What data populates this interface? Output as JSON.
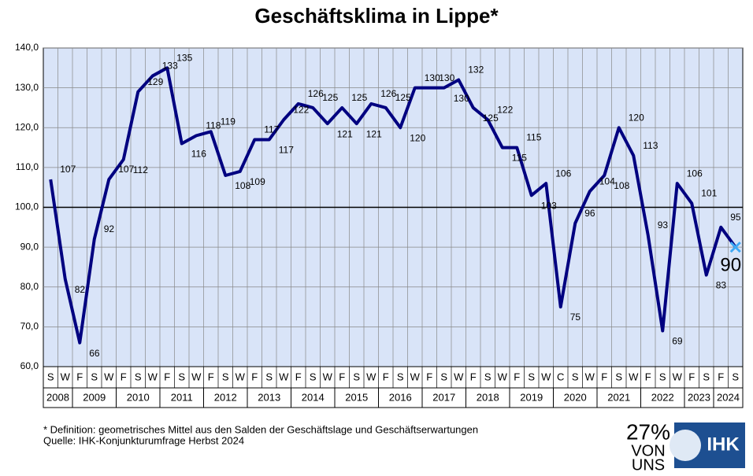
{
  "chart_data": {
    "type": "line",
    "title": "Geschäftsklima in Lippe*",
    "categories": [
      "S",
      "W",
      "F",
      "S",
      "W",
      "F",
      "S",
      "W",
      "F",
      "S",
      "W",
      "F",
      "S",
      "W",
      "F",
      "S",
      "W",
      "F",
      "S",
      "W",
      "F",
      "S",
      "W",
      "F",
      "S",
      "W",
      "F",
      "S",
      "W",
      "F",
      "S",
      "W",
      "F",
      "S",
      "W",
      "C",
      "S",
      "W",
      "F",
      "S",
      "W",
      "F",
      "S",
      "W",
      "F",
      "S",
      "F",
      "S"
    ],
    "years": [
      "2008",
      "2008",
      "2009",
      "2009",
      "2009",
      "2010",
      "2010",
      "2010",
      "2011",
      "2011",
      "2011",
      "2012",
      "2012",
      "2012",
      "2013",
      "2013",
      "2013",
      "2014",
      "2014",
      "2014",
      "2015",
      "2015",
      "2015",
      "2016",
      "2016",
      "2016",
      "2017",
      "2017",
      "2017",
      "2018",
      "2018",
      "2018",
      "2019",
      "2019",
      "2019",
      "2020",
      "2020",
      "2020",
      "2021",
      "2021",
      "2021",
      "2022",
      "2022",
      "2022",
      "2023",
      "2023",
      "2024",
      "2024"
    ],
    "series": [
      {
        "name": "Geschäftsklima",
        "color": "#000080",
        "values": [
          107,
          82,
          66,
          92,
          107,
          112,
          129,
          133,
          135,
          116,
          118,
          119,
          108,
          109,
          117,
          117,
          122,
          126,
          125,
          121,
          125,
          121,
          126,
          125,
          120,
          130,
          130,
          130,
          132,
          125,
          122,
          115,
          115,
          103,
          106,
          75,
          96,
          104,
          108,
          120,
          113,
          93,
          69,
          106,
          101,
          83,
          95,
          90
        ]
      }
    ],
    "ylim": [
      60,
      140
    ],
    "yticks": [
      {
        "value": 60,
        "label": "60,0"
      },
      {
        "value": 70,
        "label": "70,0"
      },
      {
        "value": 80,
        "label": "80,0"
      },
      {
        "value": 90,
        "label": "90,0"
      },
      {
        "value": 100,
        "label": "100,0"
      },
      {
        "value": 110,
        "label": "110,0"
      },
      {
        "value": 120,
        "label": "120,0"
      },
      {
        "value": 130,
        "label": "130,0"
      },
      {
        "value": 140,
        "label": "140,0"
      }
    ],
    "reference_line": 100,
    "grid": true,
    "plot_background": "#d9e4f8",
    "last_marker_color": "#3fa9f5",
    "footnote": "* Definition: geometrisches Mittel aus den Salden der Geschäftslage und Geschäftserwartungen",
    "source": "Quelle: IHK-Konjunkturumfrage Herbst 2024",
    "logo": {
      "percent": "27%",
      "line1": "VON",
      "line2": "UNS",
      "brand": "IHK"
    }
  }
}
